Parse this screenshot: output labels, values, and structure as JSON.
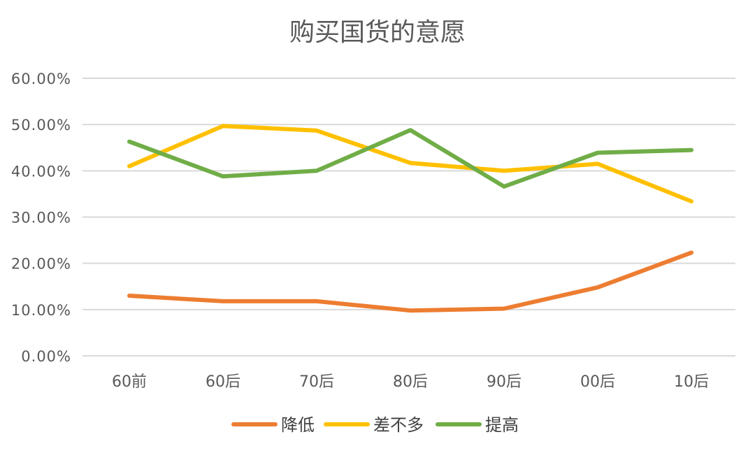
{
  "chart_data": {
    "type": "line",
    "title": "购买国货的意愿",
    "categories": [
      "60前",
      "60后",
      "70后",
      "80后",
      "90后",
      "00后",
      "10后"
    ],
    "y_tick_labels": [
      "0.00%",
      "10.00%",
      "20.00%",
      "30.00%",
      "40.00%",
      "50.00%",
      "60.00%"
    ],
    "ylim": [
      0,
      0.6
    ],
    "ytick_step": 0.1,
    "grid": true,
    "legend_position": "bottom",
    "series": [
      {
        "name": "降低",
        "color": "#ed7d31",
        "values": [
          0.13,
          0.118,
          0.118,
          0.098,
          0.102,
          0.148,
          0.223
        ]
      },
      {
        "name": "差不多",
        "color": "#ffc000",
        "values": [
          0.41,
          0.497,
          0.487,
          0.417,
          0.4,
          0.415,
          0.334
        ]
      },
      {
        "name": "提高",
        "color": "#70ad47",
        "values": [
          0.463,
          0.388,
          0.4,
          0.488,
          0.366,
          0.439,
          0.445
        ]
      }
    ]
  }
}
